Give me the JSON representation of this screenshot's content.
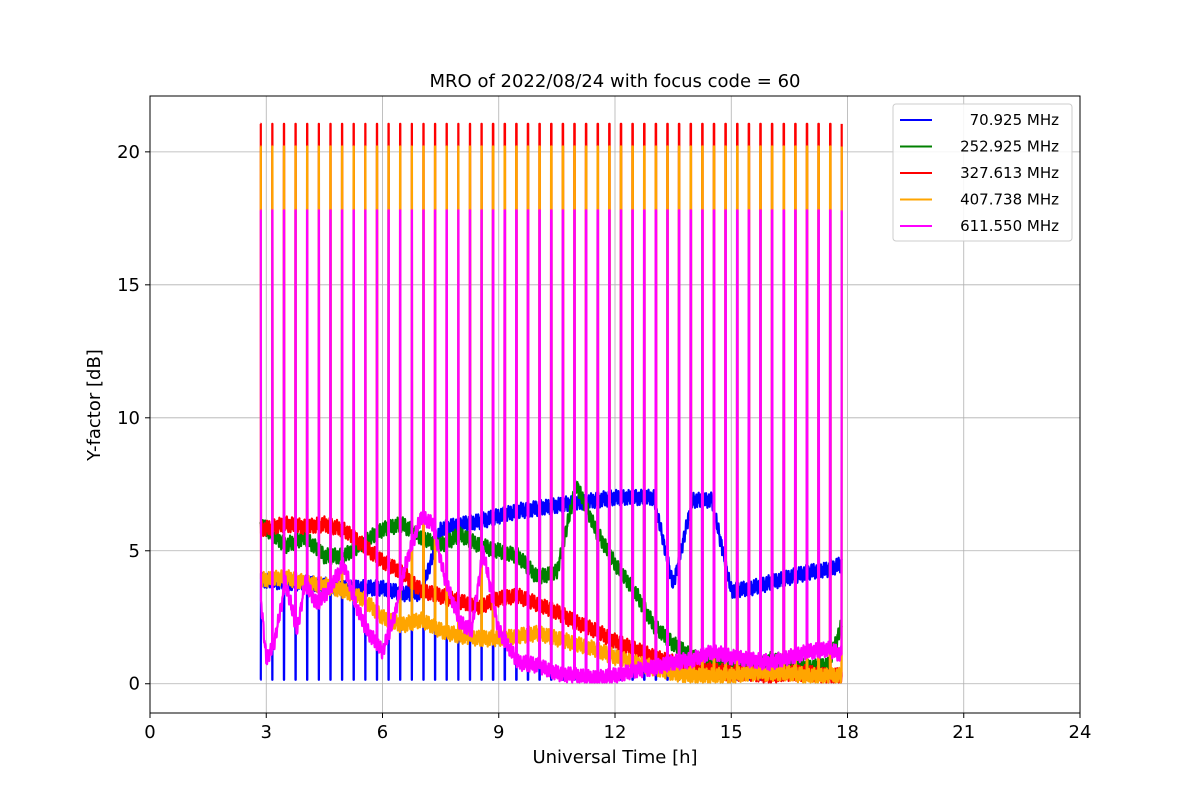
{
  "chart_data": {
    "type": "line",
    "title": "MRO of 2022/08/24 with focus code = 60",
    "xlabel": "Universal Time [h]",
    "ylabel": "Y-factor [dB]",
    "xlim": [
      0,
      24
    ],
    "ylim": [
      -1.1,
      22.1
    ],
    "xticks": [
      0,
      3,
      6,
      9,
      12,
      15,
      18,
      21,
      24
    ],
    "yticks": [
      0,
      5,
      10,
      15,
      20
    ],
    "grid": true,
    "legend_position": "top-right",
    "time_range": [
      2.85,
      17.85
    ],
    "cal_spike_period_h": 0.3,
    "series": [
      {
        "name": "70.925 MHz",
        "color": "#0000ff",
        "spike_peak": 0.15,
        "spike_until": 16.3,
        "x": [
          2.85,
          3.5,
          4.0,
          4.5,
          5.0,
          5.5,
          6.0,
          6.5,
          7.0,
          7.5,
          8.0,
          8.5,
          9.0,
          9.5,
          10.0,
          10.5,
          11.0,
          11.5,
          12.0,
          12.5,
          13.0,
          13.5,
          14.0,
          14.5,
          15.0,
          15.5,
          16.0,
          16.5,
          17.0,
          17.5,
          17.85
        ],
        "values": [
          3.9,
          3.8,
          3.8,
          3.7,
          3.6,
          3.6,
          3.6,
          3.4,
          3.4,
          5.8,
          6.0,
          6.1,
          6.3,
          6.5,
          6.6,
          6.7,
          6.8,
          6.9,
          7.0,
          7.0,
          7.0,
          3.7,
          6.9,
          6.9,
          3.5,
          3.6,
          3.8,
          4.0,
          4.2,
          4.3,
          4.5
        ]
      },
      {
        "name": "252.925 MHz",
        "color": "#008000",
        "x": [
          2.85,
          3.5,
          4.0,
          4.5,
          5.0,
          5.5,
          6.0,
          6.5,
          7.0,
          7.5,
          8.0,
          8.5,
          9.0,
          9.5,
          10.0,
          10.5,
          11.0,
          11.5,
          12.0,
          12.5,
          13.0,
          13.5,
          14.0,
          14.5,
          15.0,
          15.5,
          16.0,
          16.5,
          17.0,
          17.5,
          17.85
        ],
        "values": [
          6.0,
          5.2,
          5.5,
          4.8,
          4.8,
          5.3,
          5.8,
          6.0,
          5.5,
          5.2,
          5.6,
          5.2,
          5.0,
          4.8,
          4.0,
          4.2,
          7.5,
          5.8,
          4.5,
          3.5,
          2.2,
          1.5,
          1.0,
          0.8,
          0.6,
          0.5,
          0.9,
          0.8,
          0.6,
          0.7,
          2.2
        ]
      },
      {
        "name": "327.613 MHz",
        "color": "#ff0000",
        "spike_peak": 21.05,
        "x": [
          2.85,
          3.5,
          4.0,
          4.5,
          5.0,
          5.5,
          6.0,
          6.5,
          7.0,
          7.5,
          8.0,
          8.5,
          9.0,
          9.5,
          10.0,
          10.5,
          11.0,
          11.5,
          12.0,
          12.5,
          13.0,
          13.5,
          14.0,
          14.5,
          15.0,
          15.5,
          16.0,
          16.5,
          17.0,
          17.5,
          17.85
        ],
        "values": [
          5.8,
          6.0,
          5.9,
          6.0,
          5.8,
          5.2,
          4.6,
          4.2,
          3.5,
          3.3,
          3.1,
          2.9,
          3.2,
          3.3,
          3.0,
          2.7,
          2.3,
          2.0,
          1.6,
          1.3,
          1.0,
          0.8,
          0.6,
          0.5,
          0.4,
          0.4,
          0.3,
          0.4,
          0.4,
          0.3,
          0.3
        ]
      },
      {
        "name": "407.738 MHz",
        "color": "#ffa500",
        "spike_peak": 20.2,
        "x": [
          2.85,
          3.5,
          4.0,
          4.5,
          5.0,
          5.5,
          6.0,
          6.5,
          7.0,
          7.5,
          8.0,
          8.5,
          9.0,
          9.5,
          10.0,
          10.5,
          11.0,
          11.5,
          12.0,
          12.5,
          13.0,
          13.5,
          14.0,
          14.5,
          15.0,
          15.5,
          16.0,
          16.5,
          17.0,
          17.5,
          17.85
        ],
        "values": [
          3.9,
          4.0,
          3.8,
          3.7,
          3.5,
          3.2,
          2.5,
          2.2,
          2.4,
          2.0,
          1.8,
          1.7,
          1.7,
          1.8,
          1.9,
          1.7,
          1.5,
          1.3,
          1.0,
          0.8,
          0.6,
          0.4,
          0.3,
          0.3,
          0.3,
          0.4,
          0.4,
          0.4,
          0.3,
          0.3,
          0.3
        ]
      },
      {
        "name": "611.550 MHz",
        "color": "#ff00ff",
        "spike_peak": 17.8,
        "x": [
          2.85,
          3.0,
          3.2,
          3.5,
          3.8,
          4.0,
          4.3,
          4.6,
          5.0,
          5.3,
          5.6,
          6.0,
          6.3,
          6.6,
          7.0,
          7.3,
          7.6,
          8.0,
          8.3,
          8.6,
          9.0,
          9.5,
          10.0,
          10.5,
          11.0,
          11.5,
          12.0,
          12.5,
          13.0,
          13.5,
          14.0,
          14.5,
          15.0,
          15.5,
          16.0,
          16.5,
          17.0,
          17.5,
          17.85
        ],
        "values": [
          3.4,
          0.9,
          1.5,
          3.8,
          2.0,
          3.8,
          3.0,
          3.5,
          4.5,
          3.0,
          2.0,
          1.2,
          2.5,
          4.5,
          6.3,
          6.0,
          4.0,
          2.3,
          2.0,
          5.0,
          2.0,
          0.8,
          0.7,
          0.4,
          0.3,
          0.2,
          0.3,
          0.5,
          0.6,
          0.8,
          0.9,
          1.2,
          1.0,
          0.9,
          0.8,
          1.0,
          1.2,
          1.3,
          1.1
        ]
      }
    ]
  }
}
